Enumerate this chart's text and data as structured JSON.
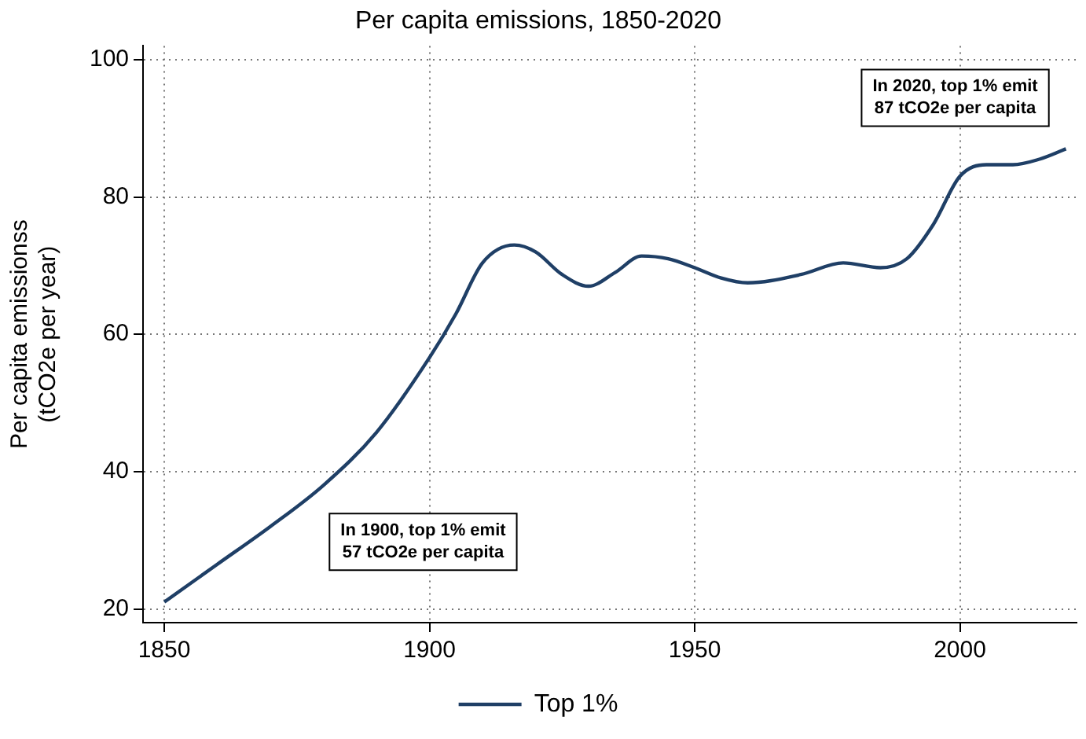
{
  "chart_data": {
    "type": "line",
    "title": "Per capita emissions, 1850-2020",
    "ylabel": "Per capita emissionss\n(tCO2e per year)",
    "x": [
      1850,
      1860,
      1870,
      1880,
      1890,
      1900,
      1905,
      1910,
      1916,
      1920,
      1925,
      1930,
      1935,
      1940,
      1945,
      1950,
      1955,
      1960,
      1970,
      1978,
      1985,
      1990,
      1995,
      2000,
      2005,
      2010,
      2015,
      2020
    ],
    "series": [
      {
        "name": "Top 1%",
        "color": "#1f3f66",
        "values": [
          21,
          26.5,
          32,
          38,
          45.7,
          56.6,
          63,
          70.4,
          73,
          72,
          68.7,
          67,
          69,
          71.4,
          71,
          69.7,
          68.2,
          67.5,
          68.7,
          70.4,
          69.7,
          71,
          76,
          83,
          84.7,
          84.7,
          85.5,
          87
        ]
      }
    ],
    "xlim": [
      1846,
      2022
    ],
    "xticks": [
      1850,
      1900,
      1950,
      2000
    ],
    "ylim": [
      18,
      102
    ],
    "yticks": [
      20,
      40,
      60,
      80,
      100
    ],
    "grid": true,
    "legend": "bottom",
    "marker": "none",
    "line_style": "solid",
    "annotations": [
      "In 1900, top 1% emit\n57 tCO2e per capita",
      "In 2020, top 1% emit\n87 tCO2e per capita"
    ]
  }
}
